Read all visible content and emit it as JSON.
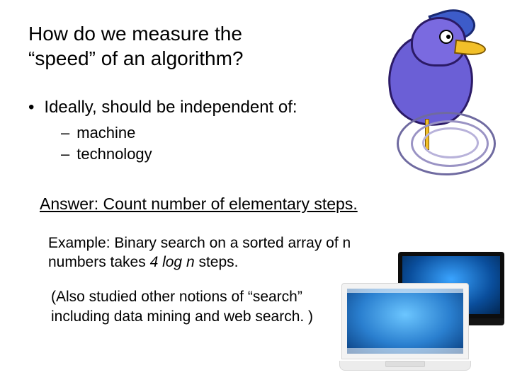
{
  "title_line1": "How do we measure the",
  "title_line2": "“speed” of an algorithm?",
  "bullet1": "Ideally, should be independent of:",
  "sub1": "machine",
  "sub2": "technology",
  "answer": "Answer: Count number of elementary steps.",
  "example_pre": "Example: Binary search on a sorted array of n numbers takes  ",
  "example_italic": "4 log n",
  "example_post": "  steps.",
  "note": "(Also studied other notions of “search” including data mining and web search. )",
  "colors": {
    "text": "#000000",
    "background": "#ffffff",
    "cartoon_body": "#6b5fd6",
    "cartoon_crest": "#3d5cc9",
    "cartoon_beak": "#f2c029",
    "laptop_wall_inner": "#3aa4ff",
    "laptop_wall_outer": "#022651"
  },
  "fontsize": {
    "title": 28,
    "bullet": 24,
    "subbullet": 22,
    "answer": 23,
    "body": 21
  },
  "icons": {
    "roadrunner": "cartoon-roadrunner",
    "laptop_black": "macbook-black",
    "laptop_white": "macbook-white"
  }
}
